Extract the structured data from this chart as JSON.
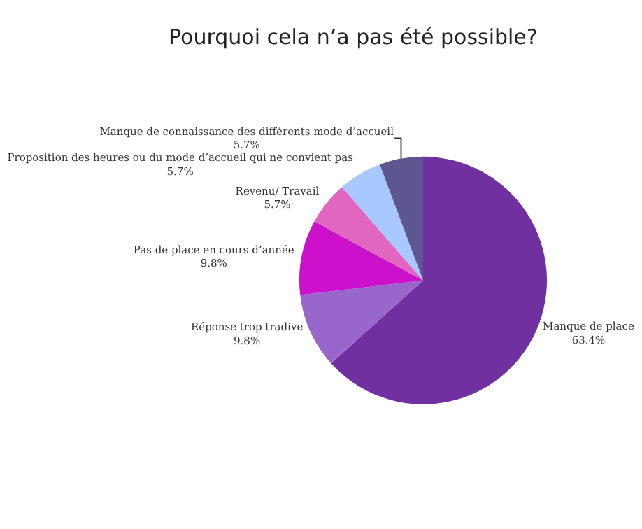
{
  "chart_data": {
    "type": "pie",
    "title": "Pourquoi cela n’a pas été possible?",
    "categories": [
      "Manque de place",
      "Réponse trop tradive",
      "Pas de place en cours d’année",
      "Revenu/ Travail",
      "Proposition des heures ou du mode d’accueil qui ne convient pas",
      "Manque de connaissance des différents mode d’accueil"
    ],
    "values": [
      63.4,
      9.8,
      9.8,
      5.7,
      5.7,
      5.7
    ],
    "value_labels": [
      "63.4%",
      "9.8%",
      "9.8%",
      "5.7%",
      "5.7%",
      "5.7%"
    ],
    "colors": [
      "#7030a0",
      "#9966cc",
      "#cc11cc",
      "#e066c0",
      "#a8c8ff",
      "#5e5690"
    ],
    "legend": false
  }
}
